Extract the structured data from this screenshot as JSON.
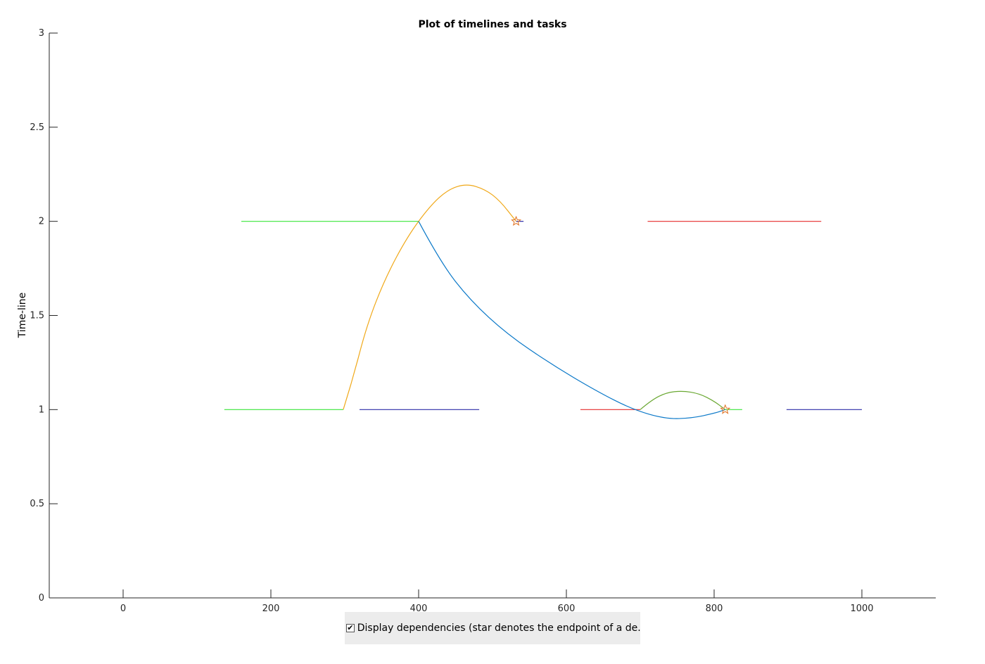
{
  "chart_data": {
    "type": "line",
    "title": "Plot of timelines and tasks",
    "xlabel": "",
    "ylabel": "Time-line",
    "xlim": [
      -100,
      1100
    ],
    "ylim": [
      0,
      3
    ],
    "xticks": [
      0,
      200,
      400,
      600,
      800,
      1000
    ],
    "yticks": [
      0,
      0.5,
      1,
      1.5,
      2,
      2.5,
      3
    ],
    "tick_labels_x": [
      "0",
      "200",
      "400",
      "600",
      "800",
      "1000"
    ],
    "tick_labels_y": [
      "0",
      "0.5",
      "1",
      "1.5",
      "2",
      "2.5",
      "3"
    ],
    "tasks": [
      {
        "timeline": 2,
        "start": 160,
        "end": 400,
        "color": "#39e639"
      },
      {
        "timeline": 2,
        "start": 532,
        "end": 542,
        "color": "#2c2ca8"
      },
      {
        "timeline": 2,
        "start": 710,
        "end": 945,
        "color": "#e62b2b"
      },
      {
        "timeline": 1,
        "start": 137,
        "end": 298,
        "color": "#39e639"
      },
      {
        "timeline": 1,
        "start": 320,
        "end": 482,
        "color": "#2c2ca8"
      },
      {
        "timeline": 1,
        "start": 619,
        "end": 700,
        "color": "#e62b2b"
      },
      {
        "timeline": 1,
        "start": 815,
        "end": 838,
        "color": "#39e639"
      },
      {
        "timeline": 1,
        "start": 898,
        "end": 1000,
        "color": "#2c2ca8"
      }
    ],
    "dependencies": [
      {
        "from": [
          298,
          1
        ],
        "to": [
          532,
          2
        ],
        "color": "#f0a818",
        "curve": [
          [
            298,
            1
          ],
          [
            310,
            1.15
          ],
          [
            330,
            1.45
          ],
          [
            355,
            1.7
          ],
          [
            385,
            1.92
          ],
          [
            415,
            2.08
          ],
          [
            440,
            2.17
          ],
          [
            465,
            2.2
          ],
          [
            490,
            2.17
          ],
          [
            510,
            2.11
          ],
          [
            532,
            2.0
          ]
        ]
      },
      {
        "from": [
          400,
          2
        ],
        "to": [
          815,
          1
        ],
        "color": "#0a78c8",
        "curve": [
          [
            400,
            2
          ],
          [
            430,
            1.78
          ],
          [
            470,
            1.58
          ],
          [
            520,
            1.4
          ],
          [
            580,
            1.24
          ],
          [
            640,
            1.1
          ],
          [
            690,
            1.0
          ],
          [
            735,
            0.95
          ],
          [
            770,
            0.955
          ],
          [
            800,
            0.98
          ],
          [
            815,
            1.0
          ]
        ]
      },
      {
        "from": [
          700,
          1
        ],
        "to": [
          815,
          1
        ],
        "color": "#6aa832",
        "curve": [
          [
            700,
            1
          ],
          [
            715,
            1.05
          ],
          [
            735,
            1.09
          ],
          [
            757,
            1.1
          ],
          [
            780,
            1.085
          ],
          [
            800,
            1.045
          ],
          [
            815,
            1.0
          ]
        ]
      }
    ],
    "endpoints": [
      [
        532,
        2
      ],
      [
        815,
        1
      ]
    ],
    "grid": false
  },
  "controls": {
    "dependency_checkbox": {
      "checked": true,
      "label": "Display dependencies (star denotes the endpoint of a de..."
    }
  }
}
